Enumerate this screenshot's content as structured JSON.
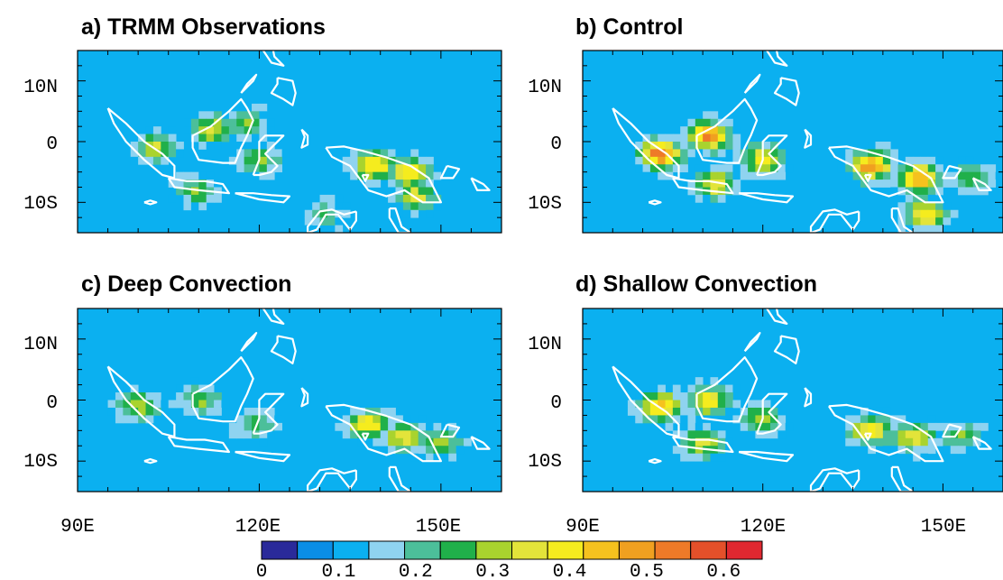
{
  "chart_data": {
    "type": "heatmap",
    "description_free": true,
    "colorbar": {
      "boundaries": [
        0,
        0.05,
        0.1,
        0.15,
        0.2,
        0.25,
        0.3,
        0.35,
        0.4,
        0.45,
        0.5,
        0.55,
        0.6,
        0.65
      ],
      "tick_labels": [
        "0",
        "0.1",
        "0.2",
        "0.3",
        "0.4",
        "0.5",
        "0.6"
      ],
      "tick_values": [
        0,
        0.1,
        0.2,
        0.3,
        0.4,
        0.5,
        0.6
      ],
      "colors": [
        "#2a2a9a",
        "#0a8ee6",
        "#0bb0f0",
        "#8fd3f0",
        "#4cbf9a",
        "#20b04a",
        "#a9d32e",
        "#e3e43a",
        "#f5ec1e",
        "#f5c21e",
        "#f0a020",
        "#ee7a28",
        "#e4502a",
        "#e02830"
      ]
    },
    "axes": {
      "x_ticks": [
        "90E",
        "120E",
        "150E"
      ],
      "x_tick_values": [
        90,
        120,
        150
      ],
      "y_ticks": [
        "10N",
        "0",
        "10S"
      ],
      "y_tick_values": [
        10,
        0,
        -10
      ],
      "xlim": [
        90,
        160
      ],
      "ylim": [
        -15,
        15
      ]
    },
    "background_value": 0.1,
    "panels": [
      {
        "title": "a) TRMM Observations",
        "hotspots": [
          {
            "lon": 103,
            "lat": -1,
            "value": 0.38
          },
          {
            "lon": 112,
            "lat": 2,
            "value": 0.38
          },
          {
            "lon": 118,
            "lat": 3,
            "value": 0.3
          },
          {
            "lon": 120,
            "lat": -3,
            "value": 0.33
          },
          {
            "lon": 139,
            "lat": -4,
            "value": 0.48
          },
          {
            "lon": 145,
            "lat": -5,
            "value": 0.48
          },
          {
            "lon": 146,
            "lat": -9,
            "value": 0.38
          },
          {
            "lon": 110,
            "lat": -8,
            "value": 0.3
          },
          {
            "lon": 131,
            "lat": -12,
            "value": 0.25
          }
        ]
      },
      {
        "title": "b) Control",
        "hotspots": [
          {
            "lon": 103,
            "lat": -2,
            "value": 0.6
          },
          {
            "lon": 111,
            "lat": 1,
            "value": 0.58
          },
          {
            "lon": 112,
            "lat": -7,
            "value": 0.4
          },
          {
            "lon": 120,
            "lat": -3,
            "value": 0.42
          },
          {
            "lon": 138,
            "lat": -4,
            "value": 0.55
          },
          {
            "lon": 146,
            "lat": -6,
            "value": 0.55
          },
          {
            "lon": 147,
            "lat": -12,
            "value": 0.45
          },
          {
            "lon": 155,
            "lat": -6,
            "value": 0.3
          }
        ]
      },
      {
        "title": "c) Deep Convection",
        "hotspots": [
          {
            "lon": 100,
            "lat": -1,
            "value": 0.35
          },
          {
            "lon": 110,
            "lat": 0,
            "value": 0.3
          },
          {
            "lon": 119,
            "lat": -4,
            "value": 0.28
          },
          {
            "lon": 138,
            "lat": -4,
            "value": 0.45
          },
          {
            "lon": 144,
            "lat": -6,
            "value": 0.42
          },
          {
            "lon": 150,
            "lat": -7,
            "value": 0.32
          }
        ]
      },
      {
        "title": "d) Shallow Convection",
        "hotspots": [
          {
            "lon": 103,
            "lat": -1,
            "value": 0.5
          },
          {
            "lon": 111,
            "lat": 0,
            "value": 0.45
          },
          {
            "lon": 110,
            "lat": -7,
            "value": 0.4
          },
          {
            "lon": 120,
            "lat": -3,
            "value": 0.35
          },
          {
            "lon": 138,
            "lat": -5,
            "value": 0.45
          },
          {
            "lon": 145,
            "lat": -6,
            "value": 0.42
          },
          {
            "lon": 153,
            "lat": -6,
            "value": 0.3
          }
        ]
      }
    ]
  }
}
